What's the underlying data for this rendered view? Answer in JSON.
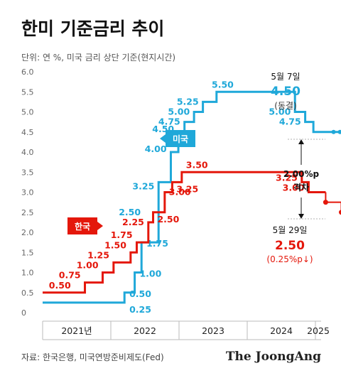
{
  "header": {
    "title": "한미 기준금리 추이",
    "subtitle": "단위: 연 %, 미국 금리 상단 기준(현지시간)"
  },
  "footer": {
    "source": "자료: 한국은행, 미국연방준비제도(Fed)",
    "brand": "The JoongAng"
  },
  "chart_data": {
    "type": "line",
    "title": "한미 기준금리 추이",
    "ylim": [
      0,
      6.0
    ],
    "y_ticks": [
      "6.0",
      "5.5",
      "5.0",
      "4.5",
      "4.0",
      "3.5",
      "3.0",
      "2.5",
      "2.0",
      "1.5",
      "1.0",
      "0.5",
      "0"
    ],
    "x_ticks": [
      "2021년",
      "2022",
      "2023",
      "2024",
      "2025"
    ],
    "grid": false,
    "series": [
      {
        "name": "미국",
        "color": "#1fa8d9",
        "steps": [
          [
            2021.0,
            0.25
          ],
          [
            2022.2,
            0.5
          ],
          [
            2022.35,
            1.0
          ],
          [
            2022.45,
            1.75
          ],
          [
            2022.7,
            3.25
          ],
          [
            2022.88,
            4.0
          ],
          [
            2022.99,
            4.5
          ],
          [
            2023.08,
            4.75
          ],
          [
            2023.22,
            5.0
          ],
          [
            2023.35,
            5.25
          ],
          [
            2023.55,
            5.5
          ],
          [
            2024.7,
            5.0
          ],
          [
            2024.85,
            4.75
          ],
          [
            2024.97,
            4.5
          ],
          [
            2025.36,
            4.5
          ]
        ],
        "labels": [
          "0.25",
          "0.50",
          "1.00",
          "1.75",
          "2.50",
          "3.25",
          "4.00",
          "4.50",
          "4.75",
          "5.00",
          "5.25",
          "5.50",
          "5.00",
          "4.75"
        ],
        "label_values": [
          0.25,
          0.5,
          1.0,
          1.75,
          2.5,
          3.25,
          4.0,
          4.5,
          4.75,
          5.0,
          5.25,
          5.5,
          5.0,
          4.75
        ],
        "end_marker": "5월 7일"
      },
      {
        "name": "한국",
        "color": "#e4170b",
        "steps": [
          [
            2021.0,
            0.5
          ],
          [
            2021.62,
            0.75
          ],
          [
            2021.88,
            1.0
          ],
          [
            2022.04,
            1.25
          ],
          [
            2022.29,
            1.5
          ],
          [
            2022.38,
            1.75
          ],
          [
            2022.55,
            2.25
          ],
          [
            2022.62,
            2.5
          ],
          [
            2022.79,
            3.0
          ],
          [
            2022.9,
            3.25
          ],
          [
            2023.04,
            3.5
          ],
          [
            2024.8,
            3.25
          ],
          [
            2024.9,
            3.0
          ],
          [
            2025.15,
            2.75
          ],
          [
            2025.38,
            2.5
          ]
        ],
        "labels": [
          "0.50",
          "0.75",
          "1.00",
          "1.25",
          "1.50",
          "1.75",
          "2.25",
          "2.50",
          "3.00",
          "3.25",
          "3.50",
          "3.25",
          "3.00"
        ],
        "label_values": [
          0.5,
          0.75,
          1.0,
          1.25,
          1.5,
          1.75,
          2.25,
          2.5,
          3.0,
          3.25,
          3.5,
          3.25,
          3.0
        ],
        "end_marker": "5월 29일"
      }
    ],
    "annotations": {
      "us_date": "5월 7일",
      "us_value": "4.50",
      "us_note": "(동결)",
      "gap_value": "2.00%p",
      "gap_label": "격차",
      "kr_date": "5월 29일",
      "kr_value": "2.50",
      "kr_note": "(0.25%p↓)"
    }
  }
}
